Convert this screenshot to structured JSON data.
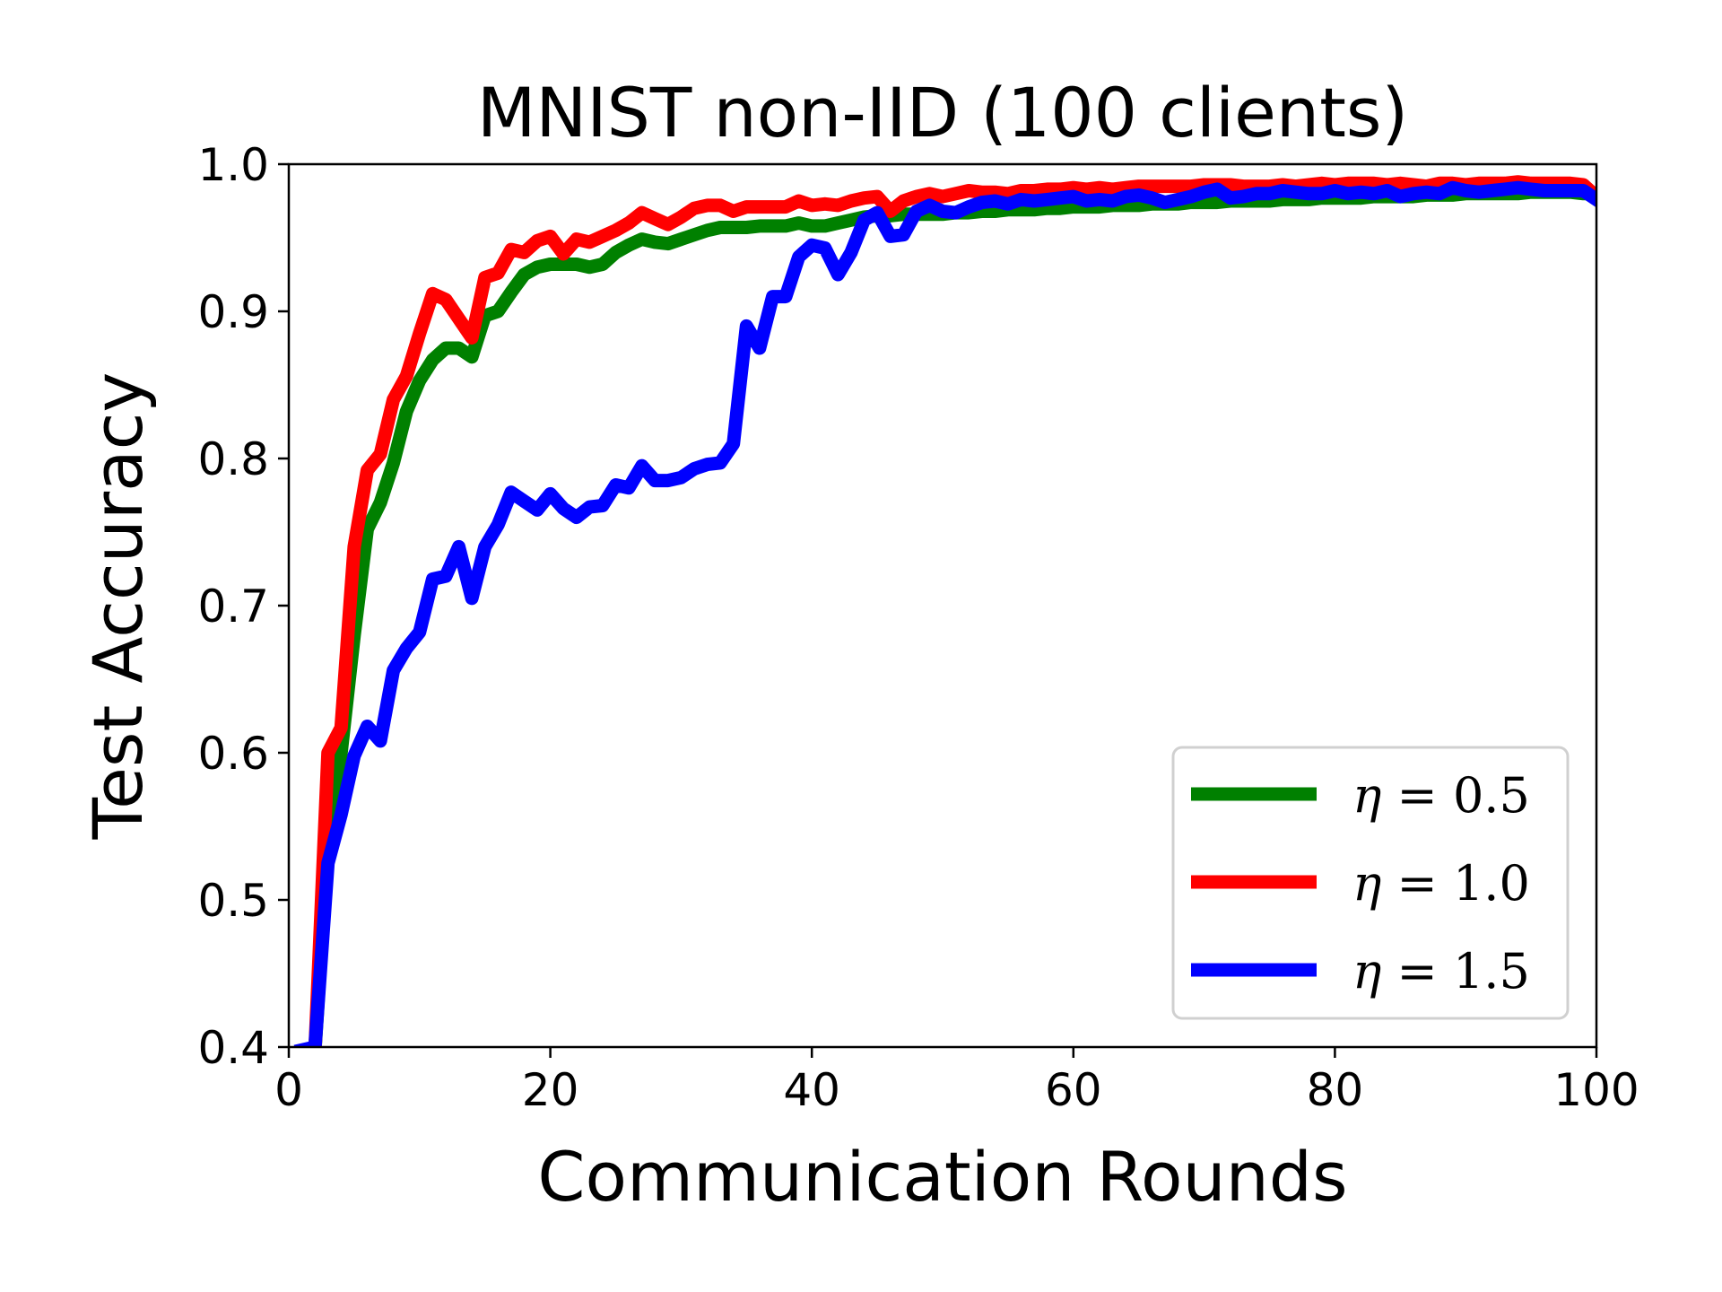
{
  "chart_data": {
    "type": "line",
    "title": "MNIST non-IID (100 clients)",
    "xlabel": "Communication Rounds",
    "ylabel": "Test Accuracy",
    "xlim": [
      0,
      100
    ],
    "ylim": [
      0.4,
      1.0
    ],
    "xticks": [
      "0",
      "20",
      "40",
      "60",
      "80",
      "100"
    ],
    "yticks": [
      "0.4",
      "0.5",
      "0.6",
      "0.7",
      "0.8",
      "0.9",
      "1.0"
    ],
    "grid": false,
    "legend_position": "lower-right",
    "x": [
      1,
      2,
      3,
      4,
      5,
      6,
      7,
      8,
      9,
      10,
      11,
      12,
      13,
      14,
      15,
      16,
      17,
      18,
      19,
      20,
      21,
      22,
      23,
      24,
      25,
      26,
      27,
      28,
      29,
      30,
      31,
      32,
      33,
      34,
      35,
      36,
      37,
      38,
      39,
      40,
      41,
      42,
      43,
      44,
      45,
      46,
      47,
      48,
      49,
      50,
      51,
      52,
      53,
      54,
      55,
      56,
      57,
      58,
      59,
      60,
      61,
      62,
      63,
      64,
      65,
      66,
      67,
      68,
      69,
      70,
      71,
      72,
      73,
      74,
      75,
      76,
      77,
      78,
      79,
      80,
      81,
      82,
      83,
      84,
      85,
      86,
      87,
      88,
      89,
      90,
      91,
      92,
      93,
      94,
      95,
      96,
      97,
      98,
      99,
      100
    ],
    "series": [
      {
        "name": "η = 0.5",
        "legend_prefix": "η",
        "legend_value": "0.5",
        "color": "#008000",
        "values": [
          0.396,
          0.398,
          0.54,
          0.6,
          0.68,
          0.752,
          0.77,
          0.797,
          0.832,
          0.853,
          0.867,
          0.875,
          0.875,
          0.869,
          0.897,
          0.9,
          0.913,
          0.925,
          0.93,
          0.932,
          0.932,
          0.932,
          0.93,
          0.932,
          0.94,
          0.945,
          0.949,
          0.947,
          0.946,
          0.949,
          0.952,
          0.955,
          0.957,
          0.957,
          0.957,
          0.958,
          0.958,
          0.958,
          0.96,
          0.958,
          0.958,
          0.96,
          0.962,
          0.964,
          0.965,
          0.965,
          0.966,
          0.966,
          0.966,
          0.966,
          0.967,
          0.967,
          0.968,
          0.968,
          0.969,
          0.969,
          0.969,
          0.97,
          0.97,
          0.971,
          0.971,
          0.971,
          0.972,
          0.972,
          0.972,
          0.973,
          0.973,
          0.973,
          0.974,
          0.974,
          0.974,
          0.975,
          0.975,
          0.975,
          0.975,
          0.976,
          0.976,
          0.976,
          0.977,
          0.977,
          0.977,
          0.977,
          0.978,
          0.978,
          0.978,
          0.978,
          0.979,
          0.979,
          0.979,
          0.98,
          0.98,
          0.98,
          0.98,
          0.98,
          0.981,
          0.981,
          0.981,
          0.981,
          0.98,
          0.98
        ]
      },
      {
        "name": "η = 1.0",
        "legend_prefix": "η",
        "legend_value": "1.0",
        "color": "#ff0000",
        "values": [
          0.396,
          0.398,
          0.6,
          0.617,
          0.74,
          0.792,
          0.803,
          0.84,
          0.856,
          0.885,
          0.912,
          0.908,
          0.895,
          0.882,
          0.923,
          0.926,
          0.942,
          0.94,
          0.948,
          0.951,
          0.939,
          0.949,
          0.947,
          0.951,
          0.955,
          0.96,
          0.967,
          0.963,
          0.959,
          0.964,
          0.97,
          0.972,
          0.972,
          0.968,
          0.971,
          0.971,
          0.971,
          0.971,
          0.975,
          0.972,
          0.973,
          0.972,
          0.975,
          0.977,
          0.978,
          0.968,
          0.975,
          0.978,
          0.98,
          0.978,
          0.98,
          0.982,
          0.981,
          0.981,
          0.98,
          0.982,
          0.982,
          0.983,
          0.983,
          0.984,
          0.983,
          0.984,
          0.983,
          0.984,
          0.985,
          0.985,
          0.985,
          0.985,
          0.985,
          0.986,
          0.986,
          0.986,
          0.985,
          0.985,
          0.985,
          0.986,
          0.985,
          0.986,
          0.987,
          0.986,
          0.987,
          0.987,
          0.987,
          0.986,
          0.987,
          0.986,
          0.985,
          0.987,
          0.987,
          0.986,
          0.987,
          0.987,
          0.987,
          0.988,
          0.987,
          0.987,
          0.987,
          0.987,
          0.986,
          0.978
        ]
      },
      {
        "name": "η = 1.5",
        "legend_prefix": "η",
        "legend_value": "1.5",
        "color": "#0000ff",
        "values": [
          0.398,
          0.4,
          0.525,
          0.558,
          0.598,
          0.618,
          0.608,
          0.656,
          0.671,
          0.682,
          0.718,
          0.72,
          0.74,
          0.705,
          0.74,
          0.755,
          0.777,
          0.771,
          0.765,
          0.776,
          0.766,
          0.76,
          0.767,
          0.768,
          0.782,
          0.78,
          0.795,
          0.785,
          0.785,
          0.787,
          0.793,
          0.796,
          0.797,
          0.81,
          0.89,
          0.875,
          0.91,
          0.91,
          0.937,
          0.945,
          0.943,
          0.925,
          0.94,
          0.962,
          0.967,
          0.951,
          0.952,
          0.968,
          0.972,
          0.968,
          0.967,
          0.971,
          0.974,
          0.975,
          0.973,
          0.976,
          0.975,
          0.976,
          0.977,
          0.978,
          0.975,
          0.976,
          0.975,
          0.978,
          0.979,
          0.977,
          0.974,
          0.976,
          0.978,
          0.981,
          0.983,
          0.977,
          0.978,
          0.98,
          0.98,
          0.982,
          0.981,
          0.98,
          0.98,
          0.982,
          0.98,
          0.981,
          0.98,
          0.982,
          0.978,
          0.98,
          0.981,
          0.98,
          0.984,
          0.982,
          0.981,
          0.982,
          0.983,
          0.984,
          0.983,
          0.982,
          0.982,
          0.982,
          0.982,
          0.976
        ]
      }
    ]
  }
}
